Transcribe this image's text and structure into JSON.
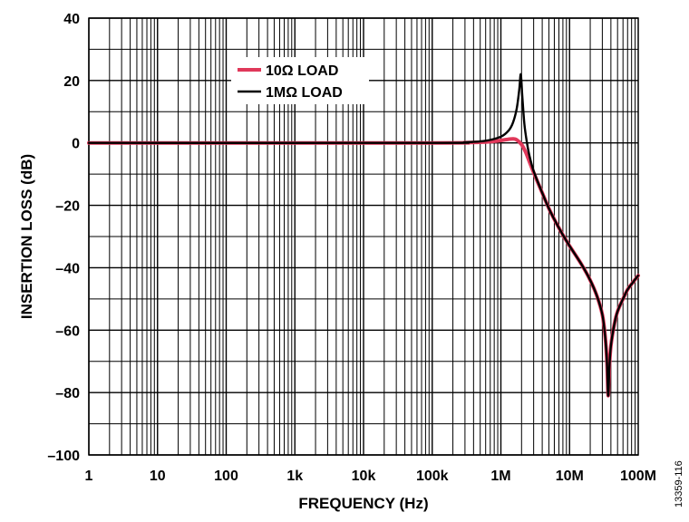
{
  "chart_data": {
    "type": "line",
    "title": "",
    "xlabel": "FREQUENCY (Hz)",
    "ylabel": "INSERTION LOSS (dB)",
    "x_scale": "log",
    "xlim": [
      1,
      100000000
    ],
    "ylim": [
      -100,
      40
    ],
    "grid": true,
    "x_ticks": [
      {
        "value": 1,
        "label": "1"
      },
      {
        "value": 10,
        "label": "10"
      },
      {
        "value": 100,
        "label": "100"
      },
      {
        "value": 1000,
        "label": "1k"
      },
      {
        "value": 10000,
        "label": "10k"
      },
      {
        "value": 100000,
        "label": "100k"
      },
      {
        "value": 1000000,
        "label": "1M"
      },
      {
        "value": 10000000,
        "label": "10M"
      },
      {
        "value": 100000000,
        "label": "100M"
      }
    ],
    "y_ticks": [
      {
        "value": 40,
        "label": "40"
      },
      {
        "value": 20,
        "label": "20"
      },
      {
        "value": 0,
        "label": "0"
      },
      {
        "value": -20,
        "label": "–20"
      },
      {
        "value": -40,
        "label": "–40"
      },
      {
        "value": -60,
        "label": "–60"
      },
      {
        "value": -80,
        "label": "–80"
      },
      {
        "value": -100,
        "label": "–100"
      }
    ],
    "legend_position": "top-center",
    "series": [
      {
        "name": "10Ω LOAD",
        "color": "#e0385a",
        "points": [
          [
            1,
            0
          ],
          [
            100000,
            0
          ],
          [
            300000,
            0.1
          ],
          [
            500000,
            0.2
          ],
          [
            700000,
            0.4
          ],
          [
            1000000,
            0.8
          ],
          [
            1300000,
            1.2
          ],
          [
            1500000,
            1.3
          ],
          [
            1700000,
            1.0
          ],
          [
            2000000,
            -0.5
          ],
          [
            2300000,
            -3
          ],
          [
            2600000,
            -6
          ],
          [
            3000000,
            -9.5
          ],
          [
            4000000,
            -16
          ],
          [
            5000000,
            -21
          ],
          [
            6000000,
            -24.5
          ],
          [
            8000000,
            -29.5
          ],
          [
            10000000,
            -33
          ],
          [
            15000000,
            -39
          ],
          [
            20000000,
            -44
          ],
          [
            25000000,
            -49
          ],
          [
            30000000,
            -55
          ],
          [
            33000000,
            -62
          ],
          [
            35000000,
            -70
          ],
          [
            36500000,
            -81
          ],
          [
            38000000,
            -72
          ],
          [
            40000000,
            -65
          ],
          [
            45000000,
            -58
          ],
          [
            50000000,
            -54
          ],
          [
            60000000,
            -50
          ],
          [
            70000000,
            -47
          ],
          [
            85000000,
            -44.5
          ],
          [
            100000000,
            -42.5
          ]
        ]
      },
      {
        "name": "1MΩ LOAD",
        "color": "#000000",
        "points": [
          [
            1,
            0
          ],
          [
            100000,
            0
          ],
          [
            300000,
            0.2
          ],
          [
            600000,
            0.7
          ],
          [
            1000000,
            2
          ],
          [
            1300000,
            4
          ],
          [
            1500000,
            6.5
          ],
          [
            1700000,
            11
          ],
          [
            1850000,
            17
          ],
          [
            1950000,
            22
          ],
          [
            2050000,
            15
          ],
          [
            2200000,
            6
          ],
          [
            2400000,
            0
          ],
          [
            2600000,
            -4
          ],
          [
            3000000,
            -9
          ],
          [
            4000000,
            -16
          ],
          [
            5000000,
            -21
          ],
          [
            6000000,
            -24.5
          ],
          [
            8000000,
            -29.5
          ],
          [
            10000000,
            -33
          ],
          [
            15000000,
            -39
          ],
          [
            20000000,
            -44
          ],
          [
            25000000,
            -49
          ],
          [
            30000000,
            -55
          ],
          [
            33000000,
            -62
          ],
          [
            35000000,
            -70
          ],
          [
            36500000,
            -81
          ],
          [
            38000000,
            -72
          ],
          [
            40000000,
            -65
          ],
          [
            45000000,
            -58
          ],
          [
            50000000,
            -54
          ],
          [
            60000000,
            -50
          ],
          [
            70000000,
            -47
          ],
          [
            85000000,
            -44.5
          ],
          [
            100000000,
            -42.5
          ]
        ]
      }
    ]
  },
  "figure_id": "13359-116"
}
